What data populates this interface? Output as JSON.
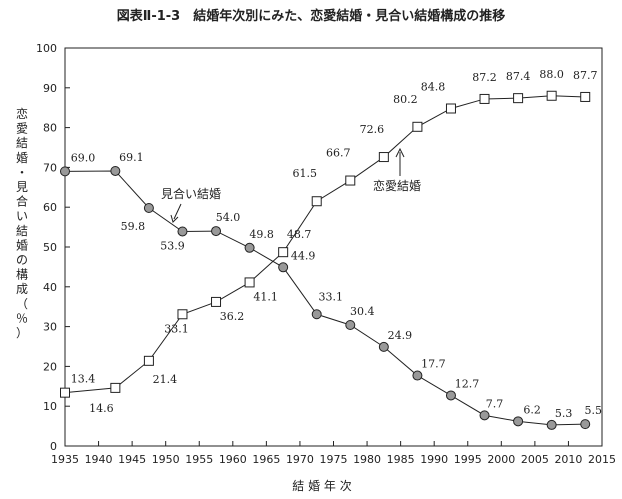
{
  "chart_data": {
    "type": "line",
    "title": "図表Ⅱ-1-3　結婚年次別にみた、恋愛結婚・見合い結婚構成の推移",
    "xlabel": "結 婚 年 次",
    "ylabel": "恋愛結婚・見合い結婚の構成（％）",
    "ylim": [
      0,
      100
    ],
    "xlim": [
      1935,
      2015
    ],
    "yticks": [
      "0",
      "10",
      "20",
      "30",
      "40",
      "50",
      "60",
      "70",
      "80",
      "90",
      "100"
    ],
    "xticks": [
      "1935",
      "1940",
      "1945",
      "1950",
      "1955",
      "1960",
      "1965",
      "1970",
      "1975",
      "1980",
      "1985",
      "1990",
      "1995",
      "2000",
      "2005",
      "2010",
      "2015"
    ],
    "x": [
      1935,
      1942.5,
      1947.5,
      1952.5,
      1957.5,
      1962.5,
      1967.5,
      1972.5,
      1977.5,
      1982.5,
      1987.5,
      1992.5,
      1997.5,
      2002.5,
      2007.5,
      2012.5
    ],
    "series": [
      {
        "name": "見合い結婚",
        "marker": "circle",
        "color": "#999999",
        "values": [
          69.0,
          69.1,
          59.8,
          53.9,
          54.0,
          49.8,
          44.9,
          33.1,
          30.4,
          24.9,
          17.7,
          12.7,
          7.7,
          6.2,
          5.3,
          5.5
        ],
        "labels": [
          "69.0",
          "69.1",
          "59.8",
          "53.9",
          "54.0",
          "49.8",
          "44.9",
          "33.1",
          "30.4",
          "24.9",
          "17.7",
          "12.7",
          "7.7",
          "6.2",
          "5.3",
          "5.5"
        ]
      },
      {
        "name": "恋愛結婚",
        "marker": "square",
        "color": "#ffffff",
        "values": [
          13.4,
          14.6,
          21.4,
          33.1,
          36.2,
          41.1,
          48.7,
          61.5,
          66.7,
          72.6,
          80.2,
          84.8,
          87.2,
          87.4,
          88.0,
          87.7
        ],
        "labels": [
          "13.4",
          "14.6",
          "21.4",
          "33.1",
          "36.2",
          "41.1",
          "48.7",
          "61.5",
          "66.7",
          "72.6",
          "80.2",
          "84.8",
          "87.2",
          "87.4",
          "88.0",
          "87.7"
        ]
      }
    ],
    "annotations": [
      {
        "text": "見合い結婚",
        "series": "見合い結婚"
      },
      {
        "text": "恋愛結婚",
        "series": "恋愛結婚"
      }
    ]
  }
}
